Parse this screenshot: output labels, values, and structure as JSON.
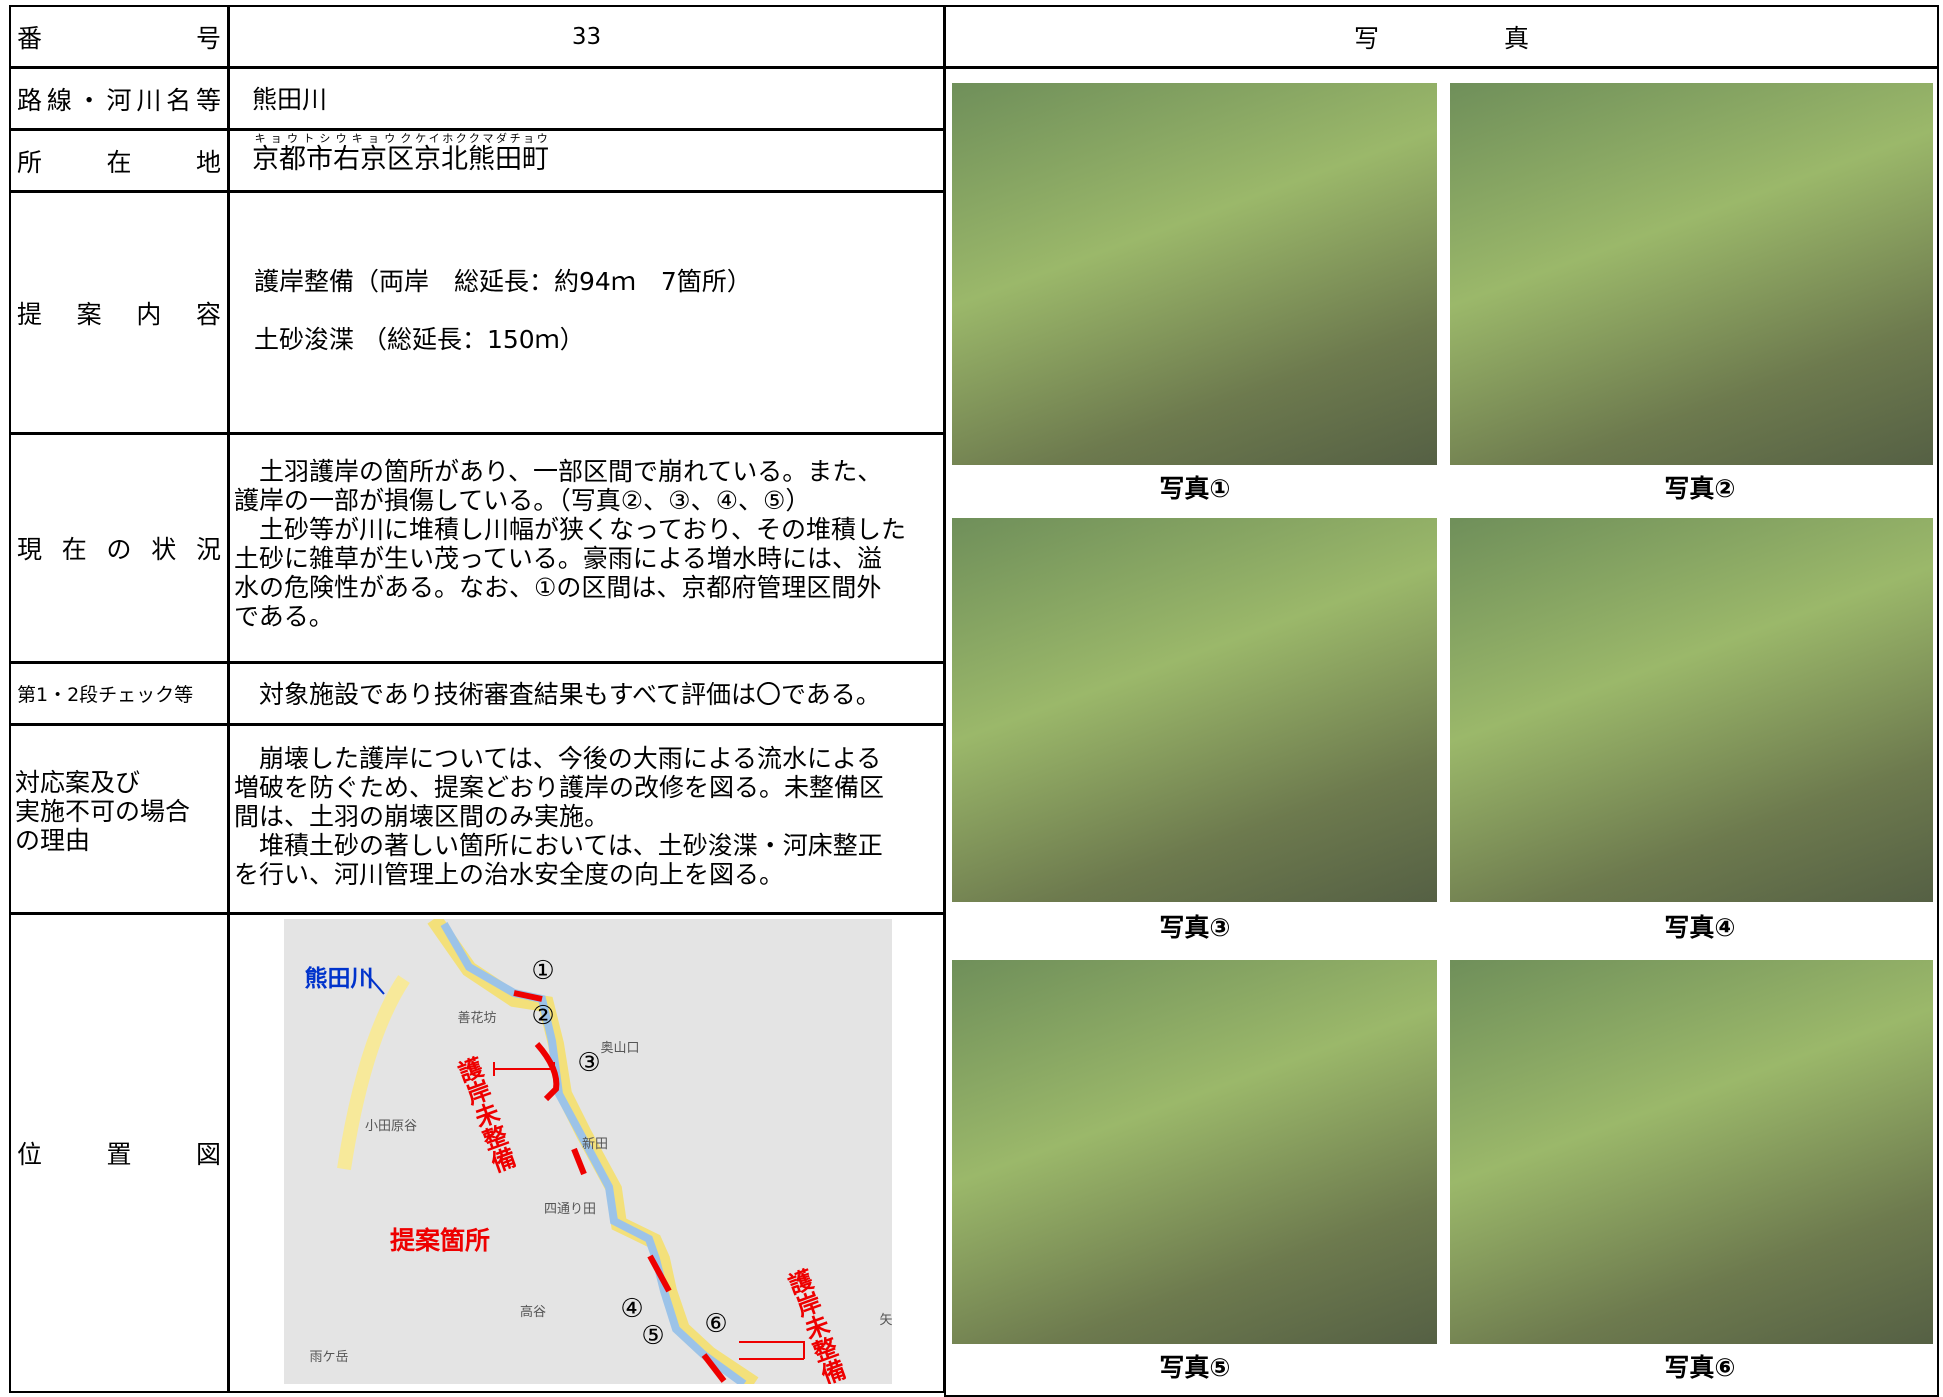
{
  "header": {
    "number_label": "番　　　　　　号",
    "number": "33",
    "photo_label": "写　　　　　真"
  },
  "route": {
    "label": "路線・河川名等",
    "content": "熊田川"
  },
  "location": {
    "label": "所　　在　　地",
    "segments": [
      {
        "ruby": "キョウトシ",
        "base": "京都市"
      },
      {
        "ruby": "ウキョウク",
        "base": "右京区"
      },
      {
        "ruby": "ケイホククマダチョウ",
        "base": "京北熊田町"
      }
    ]
  },
  "proposal": {
    "label": "提　案　内　容",
    "lines": [
      "護岸整備（両岸　総延長：約94ｍ　7箇所）",
      "土砂浚渫 （総延長：150ｍ）"
    ]
  },
  "status": {
    "label": "現 在 の 状 況",
    "lines": [
      "　土羽護岸の箇所があり、一部区間で崩れている。また、",
      "護岸の一部が損傷している。（写真②、③、④、⑤）",
      "　土砂等が川に堆積し川幅が狭くなっており、その堆積した",
      "土砂に雑草が生い茂っている。豪雨による増水時には、溢",
      "水の危険性がある。なお、①の区間は、京都府管理区間外",
      "である。"
    ]
  },
  "check": {
    "label": "第1・2段チェック等",
    "content": "　対象施設であり技術審査結果もすべて評価は〇である。"
  },
  "response": {
    "label_lines": [
      "対応案及び",
      "実施不可の場合",
      "の理由"
    ],
    "lines": [
      "　崩壊した護岸については、今後の大雨による流水による",
      "増破を防ぐため、提案どおり護岸の改修を図る。未整備区",
      "間は、土羽の崩壊区間のみ実施。",
      "　堆積土砂の著しい箇所においては、土砂浚渫・河床整正",
      "を行い、河川管理上の治水安全度の向上を図る。"
    ]
  },
  "map": {
    "label": "位　　置　　図",
    "river": "熊田川",
    "markers": [
      "①",
      "②",
      "③",
      "④",
      "⑤",
      "⑥"
    ],
    "unimproved": "護岸未整備",
    "proposed": "提案箇所",
    "places": [
      "善花坊",
      "奥山口",
      "小田原谷",
      "新田",
      "四通り田",
      "高谷",
      "雨ケ岳",
      "矢"
    ]
  },
  "photos": [
    "写真①",
    "写真②",
    "写真③",
    "写真④",
    "写真⑤",
    "写真⑥"
  ]
}
